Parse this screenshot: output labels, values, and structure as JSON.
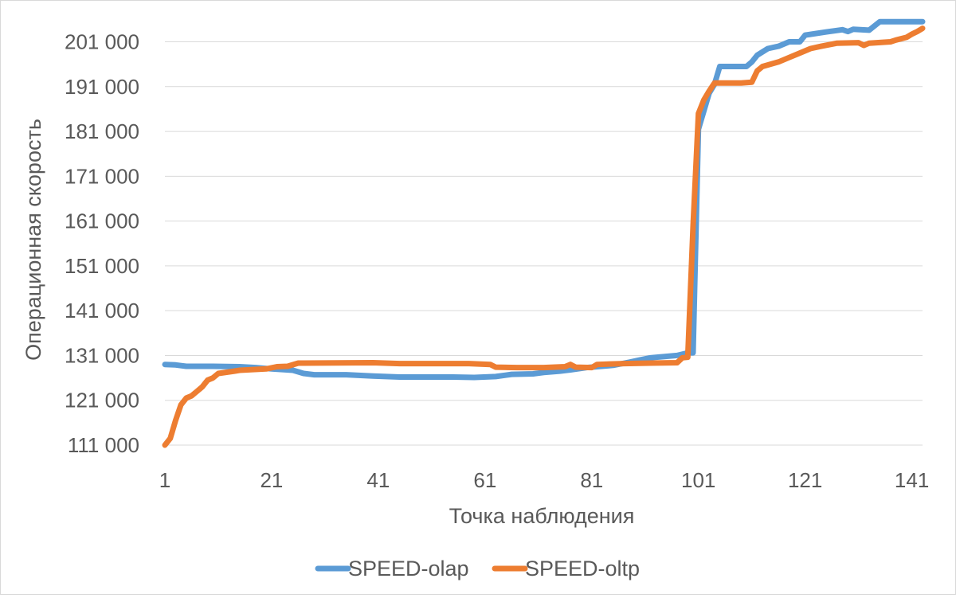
{
  "chart_data": {
    "type": "line",
    "xlabel": "Точка наблюдения",
    "ylabel": "Операционная скорость",
    "xlim": [
      1,
      143
    ],
    "ylim": [
      111000,
      205000
    ],
    "x_ticks": [
      1,
      21,
      41,
      61,
      81,
      101,
      121,
      141
    ],
    "x_tick_labels": [
      "1",
      "21",
      "41",
      "61",
      "81",
      "101",
      "121",
      "141"
    ],
    "y_ticks": [
      111000,
      121000,
      131000,
      141000,
      151000,
      161000,
      171000,
      181000,
      191000,
      201000
    ],
    "y_tick_labels": [
      "111 000",
      "121 000",
      "131 000",
      "141 000",
      "151 000",
      "161 000",
      "171 000",
      "181 000",
      "191 000",
      "201 000"
    ],
    "grid": "horizontal",
    "legend_position": "bottom",
    "series": [
      {
        "name": "SPEED-olap",
        "color": "#5b9bd5",
        "points": [
          [
            1,
            129000
          ],
          [
            3,
            128900
          ],
          [
            5,
            128600
          ],
          [
            10,
            128600
          ],
          [
            15,
            128500
          ],
          [
            18,
            128300
          ],
          [
            21,
            128000
          ],
          [
            25,
            127700
          ],
          [
            27,
            127000
          ],
          [
            29,
            126700
          ],
          [
            35,
            126700
          ],
          [
            40,
            126400
          ],
          [
            45,
            126200
          ],
          [
            55,
            126200
          ],
          [
            59,
            126100
          ],
          [
            63,
            126300
          ],
          [
            66,
            126800
          ],
          [
            70,
            126900
          ],
          [
            72,
            127200
          ],
          [
            75,
            127500
          ],
          [
            77,
            127800
          ],
          [
            80,
            128300
          ],
          [
            85,
            128800
          ],
          [
            88,
            129500
          ],
          [
            90,
            130000
          ],
          [
            92,
            130500
          ],
          [
            97,
            131000
          ],
          [
            99,
            131600
          ],
          [
            100,
            131600
          ],
          [
            101,
            181500
          ],
          [
            103,
            189500
          ],
          [
            104,
            191500
          ],
          [
            105,
            195500
          ],
          [
            110,
            195500
          ],
          [
            111,
            196500
          ],
          [
            112,
            198000
          ],
          [
            114,
            199500
          ],
          [
            116,
            200000
          ],
          [
            118,
            201000
          ],
          [
            120,
            201000
          ],
          [
            121,
            202500
          ],
          [
            125,
            203200
          ],
          [
            128,
            203700
          ],
          [
            129,
            203300
          ],
          [
            130,
            203800
          ],
          [
            133,
            203600
          ],
          [
            135,
            205500
          ],
          [
            143,
            205500
          ]
        ]
      },
      {
        "name": "SPEED-oltp",
        "color": "#ed7d31",
        "points": [
          [
            1,
            111000
          ],
          [
            2,
            112500
          ],
          [
            3,
            116500
          ],
          [
            4,
            120000
          ],
          [
            5,
            121500
          ],
          [
            6,
            122000
          ],
          [
            7,
            123000
          ],
          [
            8,
            124000
          ],
          [
            9,
            125500
          ],
          [
            10,
            126000
          ],
          [
            11,
            127000
          ],
          [
            14,
            127500
          ],
          [
            15,
            127700
          ],
          [
            20,
            128000
          ],
          [
            22,
            128500
          ],
          [
            24,
            128600
          ],
          [
            26,
            129300
          ],
          [
            40,
            129400
          ],
          [
            45,
            129200
          ],
          [
            58,
            129200
          ],
          [
            62,
            129000
          ],
          [
            63,
            128400
          ],
          [
            67,
            128300
          ],
          [
            72,
            128300
          ],
          [
            76,
            128500
          ],
          [
            77,
            129000
          ],
          [
            78,
            128400
          ],
          [
            81,
            128300
          ],
          [
            82,
            129000
          ],
          [
            87,
            129200
          ],
          [
            92,
            129300
          ],
          [
            97,
            129400
          ],
          [
            98,
            130500
          ],
          [
            99,
            130600
          ],
          [
            100,
            160000
          ],
          [
            101,
            185000
          ],
          [
            102,
            188000
          ],
          [
            103,
            190000
          ],
          [
            104,
            191800
          ],
          [
            109,
            191800
          ],
          [
            111,
            192000
          ],
          [
            112,
            194500
          ],
          [
            113,
            195500
          ],
          [
            116,
            196500
          ],
          [
            118,
            197500
          ],
          [
            120,
            198500
          ],
          [
            122,
            199500
          ],
          [
            124,
            200000
          ],
          [
            127,
            200700
          ],
          [
            131,
            200800
          ],
          [
            132,
            200200
          ],
          [
            133,
            200700
          ],
          [
            137,
            201000
          ],
          [
            138,
            201400
          ],
          [
            140,
            202000
          ],
          [
            141,
            202700
          ],
          [
            142,
            203300
          ],
          [
            143,
            204000
          ]
        ]
      }
    ]
  }
}
